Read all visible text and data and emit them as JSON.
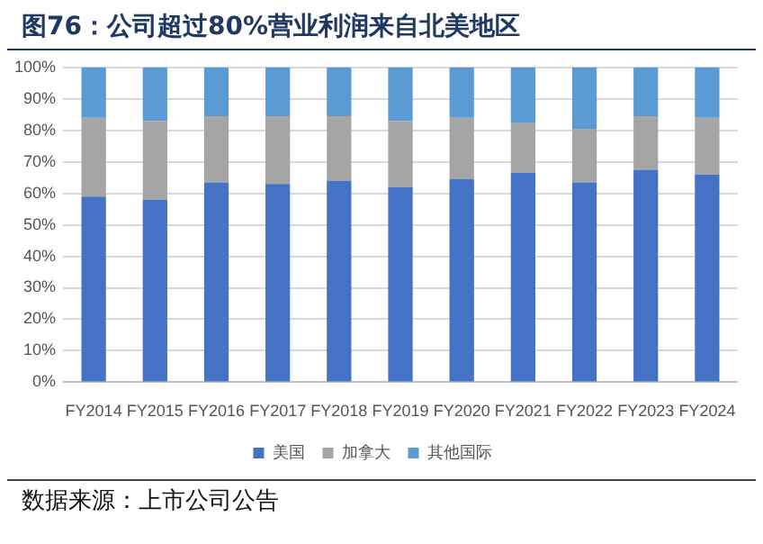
{
  "chart_data": {
    "type": "bar",
    "title": "图76：公司超过80%营业利润来自北美地区",
    "stacked": true,
    "categories": [
      "FY2014",
      "FY2015",
      "FY2016",
      "FY2017",
      "FY2018",
      "FY2019",
      "FY2020",
      "FY2021",
      "FY2022",
      "FY2023",
      "FY2024"
    ],
    "series": [
      {
        "name": "美国",
        "color": "#4472c4",
        "values": [
          59,
          58,
          63.5,
          63,
          64,
          62,
          64.5,
          66.5,
          63.5,
          67.5,
          66
        ]
      },
      {
        "name": "加拿大",
        "color": "#a5a5a5",
        "values": [
          25,
          25,
          21,
          21.5,
          20.5,
          21,
          19.5,
          16,
          17,
          17,
          18
        ]
      },
      {
        "name": "其他国际",
        "color": "#5b9bd5",
        "values": [
          16,
          17,
          15.5,
          15.5,
          15.5,
          17,
          16,
          17.5,
          19.5,
          15.5,
          16
        ]
      }
    ],
    "ylim": [
      0,
      100
    ],
    "yticks": [
      {
        "value": 0,
        "label": "0%"
      },
      {
        "value": 10,
        "label": "10%"
      },
      {
        "value": 20,
        "label": "20%"
      },
      {
        "value": 30,
        "label": "30%"
      },
      {
        "value": 40,
        "label": "40%"
      },
      {
        "value": 50,
        "label": "50%"
      },
      {
        "value": 60,
        "label": "60%"
      },
      {
        "value": 70,
        "label": "70%"
      },
      {
        "value": 80,
        "label": "80%"
      },
      {
        "value": 90,
        "label": "90%"
      },
      {
        "value": 100,
        "label": "100%"
      }
    ],
    "grid": "y",
    "legend": "bottom",
    "annotations": [
      "数据来源：上市公司公告"
    ]
  }
}
